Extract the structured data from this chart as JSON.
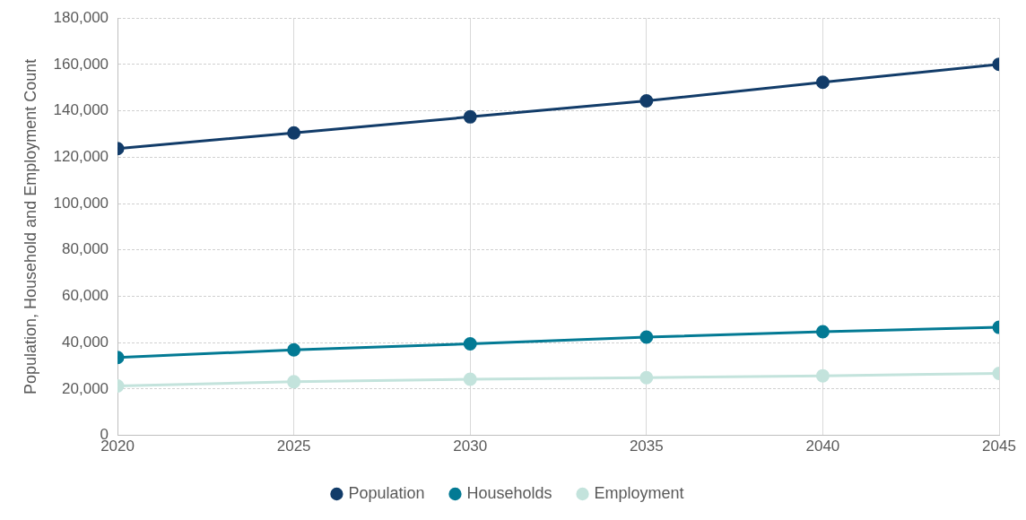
{
  "chart_data": {
    "type": "line",
    "ylabel": "Population, Household and Employment Count",
    "x": [
      2020,
      2025,
      2030,
      2035,
      2040,
      2045
    ],
    "series": [
      {
        "name": "Population",
        "color": "#123c69",
        "values": [
          123700,
          130500,
          137400,
          144300,
          152300,
          160100
        ]
      },
      {
        "name": "Households",
        "color": "#037a94",
        "values": [
          33600,
          36900,
          39500,
          42400,
          44700,
          46600
        ]
      },
      {
        "name": "Employment",
        "color": "#c3e3dc",
        "values": [
          21300,
          23100,
          24200,
          24900,
          25700,
          26700
        ]
      }
    ],
    "xlim": [
      2020,
      2045
    ],
    "xticks": [
      2020,
      2025,
      2030,
      2035,
      2040,
      2045
    ],
    "ylim": [
      0,
      180000
    ],
    "yticks": [
      0,
      {
        "value": 20000,
        "label": "20,000"
      },
      {
        "value": 40000,
        "label": "40,000"
      },
      {
        "value": 60000,
        "label": "60,000"
      },
      {
        "value": 80000,
        "label": "80,000"
      },
      {
        "value": 100000,
        "label": "100,000"
      },
      {
        "value": 120000,
        "label": "120,000"
      },
      {
        "value": 140000,
        "label": "140,000"
      },
      {
        "value": 160000,
        "label": "160,000"
      },
      {
        "value": 180000,
        "label": "180,000"
      }
    ],
    "grid": true,
    "legend": "bottom",
    "marker": "circle",
    "line_style": "solid"
  }
}
